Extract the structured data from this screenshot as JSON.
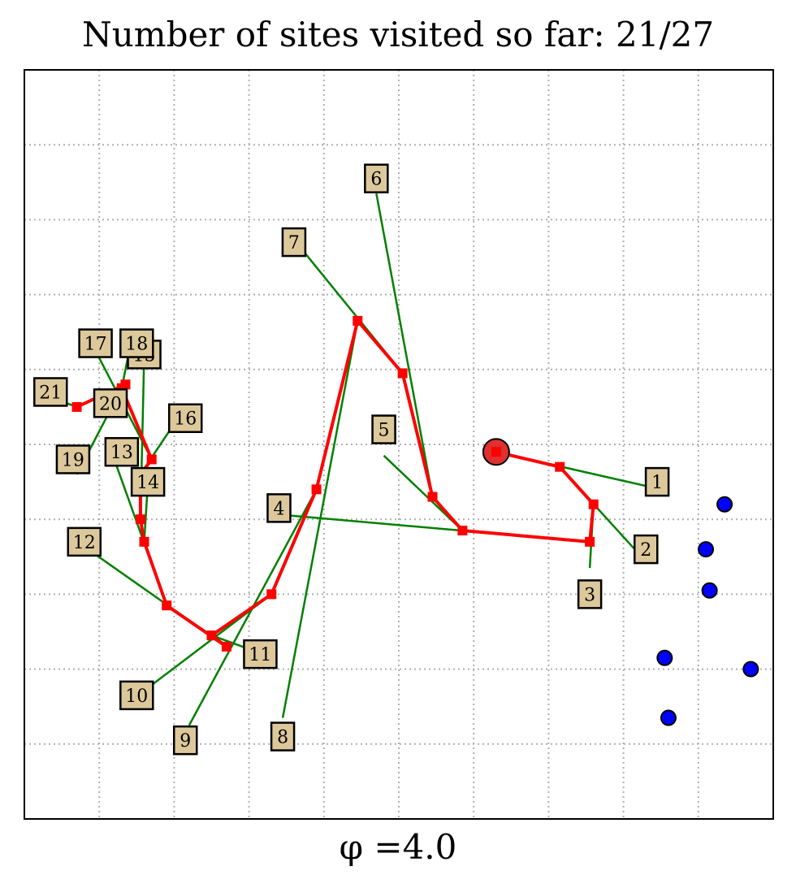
{
  "chart_data": {
    "type": "scatter",
    "title": "Number of sites visited so far: 21/27",
    "xlabel": "φ =4.0",
    "ylabel": "",
    "xlim": [
      0,
      10
    ],
    "ylim": [
      0,
      10
    ],
    "grid": true,
    "start": {
      "x": 6.3,
      "y": 4.9
    },
    "route": [
      [
        6.3,
        4.9
      ],
      [
        7.15,
        4.7
      ],
      [
        7.6,
        4.2
      ],
      [
        7.55,
        3.7
      ],
      [
        5.85,
        3.85
      ],
      [
        5.45,
        4.3
      ],
      [
        5.05,
        5.95
      ],
      [
        4.45,
        6.65
      ],
      [
        3.9,
        4.4
      ],
      [
        3.3,
        3.0
      ],
      [
        2.5,
        2.45
      ],
      [
        2.7,
        2.3
      ],
      [
        1.9,
        2.85
      ],
      [
        1.6,
        3.7
      ],
      [
        1.55,
        4.0
      ],
      [
        1.55,
        4.6
      ],
      [
        1.7,
        4.8
      ],
      [
        1.3,
        5.75
      ],
      [
        1.3,
        5.75
      ],
      [
        1.35,
        5.8
      ],
      [
        0.7,
        5.5
      ]
    ],
    "sites": [
      {
        "label": "1",
        "x": 8.5,
        "y": 4.4,
        "lx": 8.45,
        "ly": 4.5
      },
      {
        "label": "2",
        "x": 8.15,
        "y": 3.6,
        "lx": 8.3,
        "ly": 3.6
      },
      {
        "label": "3",
        "x": 7.55,
        "y": 3.35,
        "lx": 7.55,
        "ly": 3.0
      },
      {
        "label": "4",
        "x": 3.55,
        "y": 4.05,
        "lx": 3.4,
        "ly": 4.15
      },
      {
        "label": "5",
        "x": 4.8,
        "y": 4.85,
        "lx": 4.8,
        "ly": 5.2
      },
      {
        "label": "6",
        "x": 4.7,
        "y": 8.35,
        "lx": 4.7,
        "ly": 8.55
      },
      {
        "label": "7",
        "x": 3.75,
        "y": 7.55,
        "lx": 3.6,
        "ly": 7.7
      },
      {
        "label": "8",
        "x": 3.45,
        "y": 1.35,
        "lx": 3.45,
        "ly": 1.1
      },
      {
        "label": "9",
        "x": 2.2,
        "y": 1.25,
        "lx": 2.15,
        "ly": 1.05
      },
      {
        "label": "10",
        "x": 1.65,
        "y": 1.75,
        "lx": 1.5,
        "ly": 1.65
      },
      {
        "label": "11",
        "x": 3.05,
        "y": 2.25,
        "lx": 3.15,
        "ly": 2.2
      },
      {
        "label": "12",
        "x": 0.85,
        "y": 3.6,
        "lx": 0.8,
        "ly": 3.7
      },
      {
        "label": "13",
        "x": 1.2,
        "y": 4.8,
        "lx": 1.3,
        "ly": 4.9
      },
      {
        "label": "14",
        "x": 1.65,
        "y": 4.5,
        "lx": 1.65,
        "ly": 4.5
      },
      {
        "label": "15",
        "x": 1.6,
        "y": 6.2,
        "lx": 1.6,
        "ly": 6.2
      },
      {
        "label": "16",
        "x": 2.05,
        "y": 5.35,
        "lx": 2.15,
        "ly": 5.35
      },
      {
        "label": "17",
        "x": 0.95,
        "y": 6.25,
        "lx": 0.95,
        "ly": 6.35
      },
      {
        "label": "18",
        "x": 1.4,
        "y": 6.25,
        "lx": 1.5,
        "ly": 6.35
      },
      {
        "label": "19",
        "x": 0.7,
        "y": 4.6,
        "lx": 0.65,
        "ly": 4.8
      },
      {
        "label": "20",
        "x": 1.1,
        "y": 5.5,
        "lx": 1.15,
        "ly": 5.55
      },
      {
        "label": "21",
        "x": 0.3,
        "y": 5.65,
        "lx": 0.35,
        "ly": 5.7
      }
    ],
    "unvisited": [
      {
        "x": 9.35,
        "y": 4.2
      },
      {
        "x": 9.1,
        "y": 3.6
      },
      {
        "x": 9.15,
        "y": 3.05
      },
      {
        "x": 8.55,
        "y": 2.15
      },
      {
        "x": 9.7,
        "y": 2.0
      },
      {
        "x": 8.6,
        "y": 1.35
      }
    ],
    "colors": {
      "route": "#ff0000",
      "start_marker": "#e03030",
      "connector": "#008000",
      "unvisited": "#0000ff",
      "label_bg": "#dcc89a",
      "grid": "#b0b0b0"
    }
  }
}
